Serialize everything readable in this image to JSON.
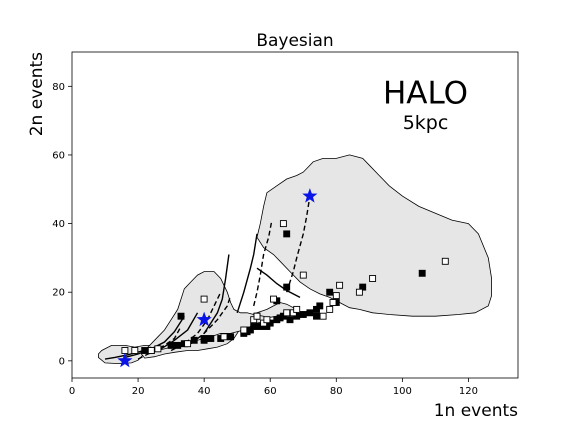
{
  "chart_data": {
    "type": "scatter",
    "title": "Bayesian",
    "xlabel": "1n events",
    "ylabel": "2n events",
    "xlim": [
      0,
      135
    ],
    "ylim": [
      -5,
      90
    ],
    "xticks": [
      0,
      20,
      40,
      60,
      80,
      100,
      120
    ],
    "yticks": [
      0,
      20,
      40,
      60,
      80
    ],
    "grid": false,
    "annotations": [
      {
        "text": "HALO",
        "x": 107,
        "y": 75,
        "size": "large"
      },
      {
        "text": "5kpc",
        "x": 107,
        "y": 67.5,
        "size": "medium"
      }
    ],
    "regions": [
      {
        "name": "small",
        "points": [
          [
            8,
            2
          ],
          [
            9,
            3
          ],
          [
            12,
            4.5
          ],
          [
            16,
            4.5
          ],
          [
            19,
            4
          ],
          [
            22,
            4.5
          ],
          [
            26,
            4.5
          ],
          [
            28,
            4.2
          ],
          [
            26,
            3.6
          ],
          [
            23,
            3.2
          ],
          [
            22,
            2.4
          ],
          [
            21,
            1.2
          ],
          [
            20,
            0.2
          ],
          [
            18,
            -0.6
          ],
          [
            14,
            -0.8
          ],
          [
            10,
            -0.6
          ],
          [
            8,
            1
          ]
        ]
      },
      {
        "name": "medium",
        "points": [
          [
            21,
            2
          ],
          [
            23,
            4
          ],
          [
            26,
            4.5
          ],
          [
            30,
            5
          ],
          [
            33,
            5
          ],
          [
            35,
            6
          ],
          [
            37,
            7
          ],
          [
            40,
            8
          ],
          [
            43,
            9
          ],
          [
            45,
            10
          ],
          [
            47,
            11
          ],
          [
            50,
            12
          ],
          [
            53,
            13
          ],
          [
            56,
            14
          ],
          [
            59,
            15
          ],
          [
            61,
            16
          ],
          [
            63,
            17
          ],
          [
            65,
            16.5
          ],
          [
            67,
            15.5
          ],
          [
            68,
            14
          ],
          [
            69,
            13.2
          ],
          [
            66,
            13.5
          ],
          [
            62,
            13
          ],
          [
            59,
            12.5
          ],
          [
            56,
            11.5
          ],
          [
            53,
            10.5
          ],
          [
            51,
            9.5
          ],
          [
            50,
            8
          ],
          [
            49,
            6.5
          ],
          [
            47,
            5
          ],
          [
            44,
            4
          ],
          [
            41,
            3.5
          ],
          [
            38,
            3
          ],
          [
            35,
            3
          ],
          [
            31,
            2.5
          ],
          [
            28,
            2
          ],
          [
            25,
            1.2
          ],
          [
            22,
            0.8
          ]
        ]
      },
      {
        "name": "upper-left-lobe",
        "points": [
          [
            22,
            3
          ],
          [
            24,
            5
          ],
          [
            26,
            7
          ],
          [
            28,
            9
          ],
          [
            30,
            12
          ],
          [
            32,
            15
          ],
          [
            33,
            18
          ],
          [
            34,
            21
          ],
          [
            36,
            23
          ],
          [
            38,
            25
          ],
          [
            40,
            26
          ],
          [
            43,
            26
          ],
          [
            45,
            24
          ],
          [
            46,
            22
          ],
          [
            47,
            20
          ],
          [
            48,
            17
          ],
          [
            49,
            15
          ],
          [
            51,
            14
          ],
          [
            53,
            14
          ],
          [
            55,
            13.5
          ],
          [
            58,
            13
          ],
          [
            60,
            12
          ],
          [
            56,
            11
          ],
          [
            52,
            9
          ],
          [
            48,
            8
          ],
          [
            45,
            8
          ],
          [
            42,
            7
          ],
          [
            38,
            6
          ],
          [
            34,
            5
          ],
          [
            30,
            4
          ],
          [
            26,
            3
          ]
        ]
      },
      {
        "name": "large",
        "points": [
          [
            56,
            36
          ],
          [
            57,
            40
          ],
          [
            58,
            45
          ],
          [
            59,
            49
          ],
          [
            62,
            51
          ],
          [
            65,
            53
          ],
          [
            68,
            54
          ],
          [
            70,
            55
          ],
          [
            73,
            58
          ],
          [
            76,
            59
          ],
          [
            80,
            59
          ],
          [
            84,
            60
          ],
          [
            88,
            59
          ],
          [
            90,
            57
          ],
          [
            93,
            54
          ],
          [
            96,
            51
          ],
          [
            100,
            48
          ],
          [
            105,
            45
          ],
          [
            110,
            43
          ],
          [
            115,
            41
          ],
          [
            120,
            40
          ],
          [
            123,
            37
          ],
          [
            126,
            30
          ],
          [
            127,
            24
          ],
          [
            127,
            19
          ],
          [
            126,
            16
          ],
          [
            122,
            14
          ],
          [
            117,
            13.5
          ],
          [
            110,
            13
          ],
          [
            103,
            13
          ],
          [
            96,
            13.5
          ],
          [
            91,
            14
          ],
          [
            87,
            15
          ],
          [
            84,
            15.5
          ],
          [
            81,
            17
          ],
          [
            78,
            18.5
          ],
          [
            75,
            19.5
          ],
          [
            72,
            21
          ],
          [
            69,
            23
          ],
          [
            66,
            26
          ],
          [
            63,
            29
          ],
          [
            61,
            31
          ],
          [
            58,
            33
          ]
        ]
      }
    ],
    "lines": [
      {
        "style": "solid",
        "points": [
          [
            10,
            0.5
          ],
          [
            13,
            1
          ],
          [
            17,
            1.8
          ],
          [
            21,
            2.8
          ],
          [
            24,
            4
          ]
        ]
      },
      {
        "style": "solid",
        "points": [
          [
            16,
            1
          ],
          [
            20,
            2
          ],
          [
            24,
            3.5
          ],
          [
            28,
            5.5
          ],
          [
            31,
            8.5
          ],
          [
            34,
            13
          ]
        ]
      },
      {
        "style": "solid",
        "points": [
          [
            23,
            2
          ],
          [
            27,
            3.5
          ],
          [
            31,
            6
          ],
          [
            35,
            9
          ],
          [
            38,
            14
          ]
        ]
      },
      {
        "style": "solid",
        "points": [
          [
            40,
            8
          ],
          [
            42,
            11
          ],
          [
            44,
            14
          ],
          [
            45.5,
            18
          ],
          [
            46.5,
            24
          ],
          [
            47.5,
            31
          ]
        ]
      },
      {
        "style": "dashed",
        "points": [
          [
            20,
            0.5
          ],
          [
            24,
            2.5
          ],
          [
            28,
            4.5
          ],
          [
            31,
            6.5
          ],
          [
            33,
            10
          ]
        ]
      },
      {
        "style": "dashed",
        "points": [
          [
            30,
            3
          ],
          [
            34,
            5
          ],
          [
            38,
            8
          ],
          [
            41,
            12
          ],
          [
            43,
            16
          ],
          [
            45,
            20
          ]
        ]
      },
      {
        "style": "dashed",
        "points": [
          [
            36,
            5
          ],
          [
            40,
            8
          ],
          [
            44,
            12
          ],
          [
            47,
            16
          ],
          [
            48,
            19
          ]
        ]
      },
      {
        "style": "solid",
        "points": [
          [
            50,
            14
          ],
          [
            52,
            20
          ],
          [
            54,
            27
          ],
          [
            55,
            31
          ],
          [
            56,
            37
          ]
        ]
      },
      {
        "style": "dashed",
        "points": [
          [
            55,
            16
          ],
          [
            56,
            20
          ],
          [
            57,
            25
          ],
          [
            58,
            31
          ],
          [
            59.5,
            36
          ],
          [
            60.5,
            41
          ]
        ]
      },
      {
        "style": "solid",
        "points": [
          [
            56,
            27
          ],
          [
            59,
            25
          ],
          [
            62,
            22.5
          ],
          [
            65,
            20.5
          ],
          [
            69,
            18.5
          ]
        ]
      },
      {
        "style": "dashed",
        "points": [
          [
            65,
            20
          ],
          [
            66,
            23
          ],
          [
            67,
            26
          ],
          [
            68,
            30
          ],
          [
            70,
            37
          ],
          [
            71,
            42
          ],
          [
            72,
            48
          ]
        ]
      }
    ],
    "series": [
      {
        "name": "filled squares",
        "marker": "square-filled",
        "points": [
          [
            22,
            3
          ],
          [
            24,
            3
          ],
          [
            30,
            4.5
          ],
          [
            32,
            4.5
          ],
          [
            33,
            13
          ],
          [
            34,
            5
          ],
          [
            37,
            6
          ],
          [
            40,
            6
          ],
          [
            40,
            6.5
          ],
          [
            42,
            6.5
          ],
          [
            45,
            6.5
          ],
          [
            48,
            7
          ],
          [
            52,
            8
          ],
          [
            53,
            8.5
          ],
          [
            54,
            9
          ],
          [
            55,
            10
          ],
          [
            56,
            13
          ],
          [
            57,
            10
          ],
          [
            59,
            10
          ],
          [
            60,
            11
          ],
          [
            62,
            12
          ],
          [
            62,
            17.5
          ],
          [
            63,
            12.5
          ],
          [
            64,
            13
          ],
          [
            65,
            37
          ],
          [
            65,
            21.5
          ],
          [
            66,
            12
          ],
          [
            68,
            13
          ],
          [
            70,
            13.5
          ],
          [
            72,
            14
          ],
          [
            74,
            13
          ],
          [
            74,
            15
          ],
          [
            75,
            16
          ],
          [
            78,
            20
          ],
          [
            80,
            17
          ],
          [
            88,
            21.5
          ],
          [
            106,
            25.5
          ]
        ]
      },
      {
        "name": "open squares",
        "marker": "square-open",
        "points": [
          [
            16,
            3
          ],
          [
            19,
            3
          ],
          [
            24,
            3
          ],
          [
            26,
            3.5
          ],
          [
            35,
            5
          ],
          [
            40,
            18
          ],
          [
            46,
            7
          ],
          [
            52,
            9
          ],
          [
            55,
            12
          ],
          [
            56,
            13
          ],
          [
            58,
            11
          ],
          [
            59,
            12
          ],
          [
            61,
            18
          ],
          [
            64,
            40
          ],
          [
            65,
            14
          ],
          [
            67,
            14
          ],
          [
            68,
            15
          ],
          [
            70,
            25
          ],
          [
            76,
            13
          ],
          [
            78,
            15
          ],
          [
            79,
            17
          ],
          [
            80,
            19
          ],
          [
            81,
            22
          ],
          [
            87,
            20
          ],
          [
            91,
            24
          ],
          [
            113,
            29
          ]
        ]
      },
      {
        "name": "stars",
        "marker": "star",
        "color": "#0a14e6",
        "points": [
          [
            16,
            0
          ],
          [
            40,
            12
          ],
          [
            72,
            48
          ]
        ]
      }
    ]
  },
  "colors": {
    "region_fill": "#e6e6e6",
    "region_stroke": "#000000",
    "star_fill": "#0a14e6",
    "axis": "#000000"
  }
}
